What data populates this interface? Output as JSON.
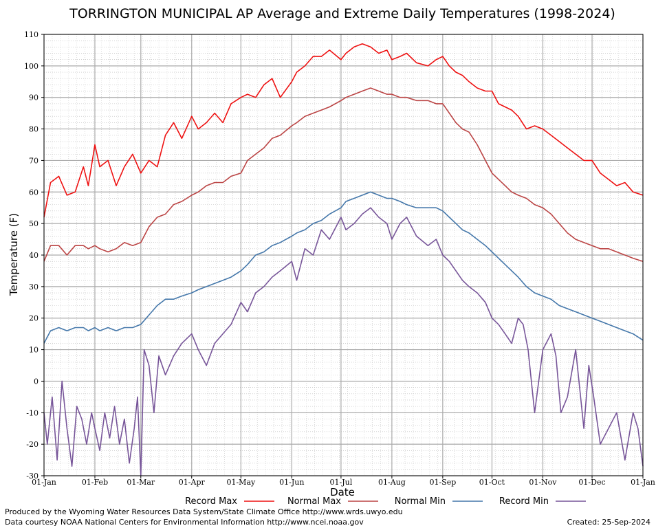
{
  "chart_data": {
    "type": "line",
    "title": "TORRINGTON MUNICIPAL AP Average and Extreme Daily Temperatures (1998-2024)",
    "xlabel": "Date",
    "ylabel": "Temperature (F)",
    "ylim": [
      -30,
      110
    ],
    "yticks": [
      -30,
      -20,
      -10,
      0,
      10,
      20,
      30,
      40,
      50,
      60,
      70,
      80,
      90,
      100,
      110
    ],
    "x_ticks": [
      {
        "label": "01-Jan",
        "day": 1
      },
      {
        "label": "01-Feb",
        "day": 32
      },
      {
        "label": "01-Mar",
        "day": 60
      },
      {
        "label": "01-Apr",
        "day": 91
      },
      {
        "label": "01-May",
        "day": 121
      },
      {
        "label": "01-Jun",
        "day": 152
      },
      {
        "label": "01-Jul",
        "day": 182
      },
      {
        "label": "01-Aug",
        "day": 213
      },
      {
        "label": "01-Sep",
        "day": 244
      },
      {
        "label": "01-Oct",
        "day": 274
      },
      {
        "label": "01-Nov",
        "day": 305
      },
      {
        "label": "01-Dec",
        "day": 335
      },
      {
        "label": "01-Jan",
        "day": 366
      }
    ],
    "xlim": [
      1,
      366
    ],
    "grid": true,
    "legend_position": "bottom",
    "series": [
      {
        "name": "Record Max",
        "color": "#ee1111",
        "day": [
          1,
          5,
          10,
          15,
          20,
          25,
          28,
          32,
          35,
          40,
          45,
          50,
          55,
          60,
          65,
          70,
          75,
          80,
          85,
          91,
          95,
          100,
          105,
          110,
          115,
          121,
          125,
          130,
          135,
          140,
          145,
          152,
          155,
          160,
          165,
          170,
          175,
          182,
          185,
          190,
          195,
          200,
          205,
          210,
          213,
          218,
          222,
          228,
          235,
          240,
          244,
          248,
          252,
          256,
          260,
          265,
          270,
          274,
          278,
          282,
          286,
          290,
          295,
          300,
          305,
          310,
          315,
          320,
          325,
          330,
          335,
          340,
          345,
          350,
          355,
          360,
          366
        ],
        "values": [
          52,
          63,
          65,
          59,
          60,
          68,
          62,
          75,
          68,
          70,
          62,
          68,
          72,
          66,
          70,
          68,
          78,
          82,
          77,
          84,
          80,
          82,
          85,
          82,
          88,
          90,
          91,
          90,
          94,
          96,
          90,
          95,
          98,
          100,
          103,
          103,
          105,
          102,
          104,
          106,
          107,
          106,
          104,
          105,
          102,
          103,
          104,
          101,
          100,
          102,
          103,
          100,
          98,
          97,
          95,
          93,
          92,
          92,
          88,
          87,
          86,
          84,
          80,
          81,
          80,
          78,
          76,
          74,
          72,
          70,
          70,
          66,
          64,
          62,
          63,
          60,
          59
        ]
      },
      {
        "name": "Normal Max",
        "color": "#bb4444",
        "day": [
          1,
          5,
          10,
          15,
          20,
          25,
          28,
          32,
          35,
          40,
          45,
          50,
          55,
          60,
          65,
          70,
          75,
          80,
          85,
          91,
          95,
          100,
          105,
          110,
          115,
          121,
          125,
          130,
          135,
          140,
          145,
          152,
          155,
          160,
          165,
          170,
          175,
          182,
          185,
          190,
          195,
          200,
          205,
          210,
          213,
          218,
          222,
          228,
          235,
          240,
          244,
          248,
          252,
          256,
          260,
          265,
          270,
          274,
          278,
          282,
          286,
          290,
          295,
          300,
          305,
          310,
          315,
          320,
          325,
          330,
          335,
          340,
          345,
          350,
          355,
          360,
          366
        ],
        "values": [
          38,
          43,
          43,
          40,
          43,
          43,
          42,
          43,
          42,
          41,
          42,
          44,
          43,
          44,
          49,
          52,
          53,
          56,
          57,
          59,
          60,
          62,
          63,
          63,
          65,
          66,
          70,
          72,
          74,
          77,
          78,
          81,
          82,
          84,
          85,
          86,
          87,
          89,
          90,
          91,
          92,
          93,
          92,
          91,
          91,
          90,
          90,
          89,
          89,
          88,
          88,
          85,
          82,
          80,
          79,
          75,
          70,
          66,
          64,
          62,
          60,
          59,
          58,
          56,
          55,
          53,
          50,
          47,
          45,
          44,
          43,
          42,
          42,
          41,
          40,
          39,
          38
        ]
      },
      {
        "name": "Normal Min",
        "color": "#4477aa",
        "day": [
          1,
          5,
          10,
          15,
          20,
          25,
          28,
          32,
          35,
          40,
          45,
          50,
          55,
          60,
          65,
          70,
          75,
          80,
          85,
          91,
          95,
          100,
          105,
          110,
          115,
          121,
          125,
          130,
          135,
          140,
          145,
          152,
          155,
          160,
          165,
          170,
          175,
          182,
          185,
          190,
          195,
          200,
          205,
          210,
          213,
          218,
          222,
          228,
          235,
          240,
          244,
          248,
          252,
          256,
          260,
          265,
          270,
          274,
          278,
          282,
          286,
          290,
          295,
          300,
          305,
          310,
          315,
          320,
          325,
          330,
          335,
          340,
          345,
          350,
          355,
          360,
          366
        ],
        "values": [
          12,
          16,
          17,
          16,
          17,
          17,
          16,
          17,
          16,
          17,
          16,
          17,
          17,
          18,
          21,
          24,
          26,
          26,
          27,
          28,
          29,
          30,
          31,
          32,
          33,
          35,
          37,
          40,
          41,
          43,
          44,
          46,
          47,
          48,
          50,
          51,
          53,
          55,
          57,
          58,
          59,
          60,
          59,
          58,
          58,
          57,
          56,
          55,
          55,
          55,
          54,
          52,
          50,
          48,
          47,
          45,
          43,
          41,
          39,
          37,
          35,
          33,
          30,
          28,
          27,
          26,
          24,
          23,
          22,
          21,
          20,
          19,
          18,
          17,
          16,
          15,
          13
        ]
      },
      {
        "name": "Record Min",
        "color": "#775599",
        "day": [
          1,
          3,
          6,
          9,
          12,
          15,
          18,
          21,
          24,
          27,
          30,
          32,
          35,
          38,
          41,
          44,
          47,
          50,
          53,
          56,
          58,
          60,
          62,
          65,
          68,
          71,
          75,
          80,
          85,
          91,
          95,
          100,
          105,
          110,
          115,
          121,
          125,
          130,
          135,
          140,
          145,
          152,
          155,
          160,
          165,
          170,
          175,
          182,
          185,
          190,
          195,
          200,
          205,
          210,
          213,
          218,
          222,
          228,
          235,
          240,
          244,
          248,
          252,
          256,
          260,
          265,
          270,
          274,
          278,
          282,
          286,
          290,
          293,
          296,
          300,
          305,
          310,
          313,
          316,
          320,
          325,
          330,
          333,
          336,
          340,
          345,
          350,
          355,
          360,
          363,
          366
        ],
        "values": [
          -10,
          -20,
          -5,
          -25,
          0,
          -15,
          -27,
          -8,
          -12,
          -20,
          -10,
          -15,
          -22,
          -10,
          -18,
          -8,
          -20,
          -12,
          -26,
          -15,
          -5,
          -30,
          10,
          5,
          -10,
          8,
          2,
          8,
          12,
          15,
          10,
          5,
          12,
          15,
          18,
          25,
          22,
          28,
          30,
          33,
          35,
          38,
          32,
          42,
          40,
          48,
          45,
          52,
          48,
          50,
          53,
          55,
          52,
          50,
          45,
          50,
          52,
          46,
          43,
          45,
          40,
          38,
          35,
          32,
          30,
          28,
          25,
          20,
          18,
          15,
          12,
          20,
          18,
          10,
          -10,
          10,
          15,
          8,
          -10,
          -5,
          10,
          -15,
          5,
          -5,
          -20,
          -15,
          -10,
          -25,
          -10,
          -15,
          -27
        ]
      }
    ]
  },
  "footer": {
    "left_line1": "Produced by the Wyoming Water Resources Data System/State Climate Office http://www.wrds.uwyo.edu",
    "left_line2": "Data courtesy NOAA National Centers for Environmental Information http://www.ncei.noaa.gov",
    "created": "Created:  25-Sep-2024"
  }
}
